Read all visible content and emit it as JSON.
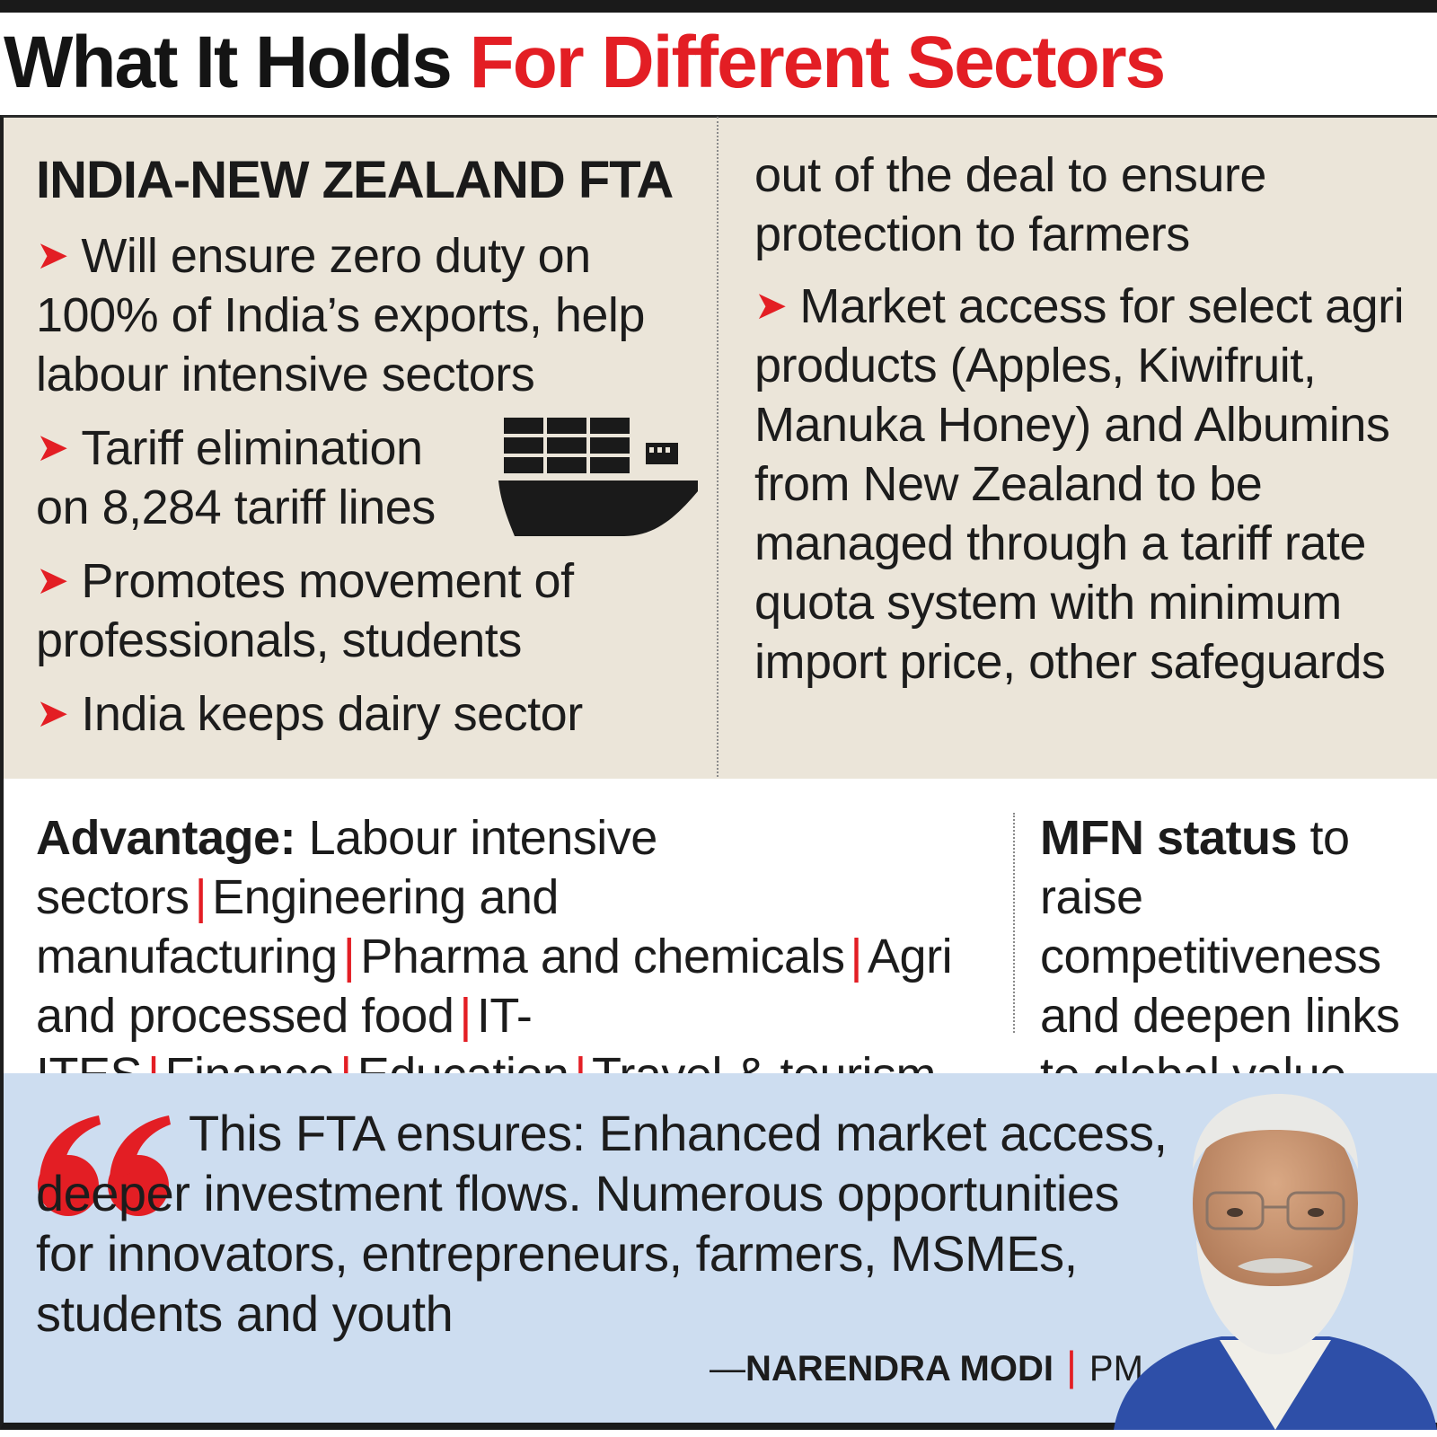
{
  "headline": {
    "part1": "What It Holds ",
    "part2": "For Different Sectors"
  },
  "fta": {
    "title": "INDIA-NEW ZEALAND FTA",
    "bullets": [
      "Will ensure zero duty on 100% of India’s exports, help labour intensive sectors",
      "Tariff elimination on 8,284 tariff lines",
      "Promotes movement of professionals, students",
      "India keeps dairy sector"
    ],
    "continuation": "out of the deal to ensure protection to farmers",
    "right_bullet": "Market access for select agri products (Apples, Kiwifruit, Manuka Honey) and Albumins from New Zealand to be managed through a tariff rate quota system with minimum import price, other safeguards"
  },
  "advantage": {
    "label": "Advantage:",
    "items": [
      "Labour intensive sectors",
      "Engineering and manufacturing",
      "Pharma and chemicals",
      "Agri and processed food",
      "IT-ITES",
      "Finance",
      "Education",
      "Travel & tourism"
    ],
    "separator": "|"
  },
  "mfn": {
    "bold": "MFN status",
    "rest": " to raise competitiveness and deepen links to global value chains"
  },
  "quote": {
    "text": "This FTA ensures: Enhanced market access, deeper investment flows. Numerous opportunities for innovators, entrepreneurs, farmers, MSMEs, students and youth",
    "dash": "—",
    "name": "NARENDRA MODI",
    "separator": "|",
    "role": "PM"
  },
  "colors": {
    "accent_red": "#e31e24",
    "top_panel": "#ebe5d9",
    "quote_panel": "#cdddf0",
    "text": "#1c1c1c"
  },
  "icons": {
    "bullet": "red-arrow-icon",
    "ship": "container-ship-icon",
    "quote": "quotation-mark-icon",
    "portrait": "speaker-portrait"
  }
}
